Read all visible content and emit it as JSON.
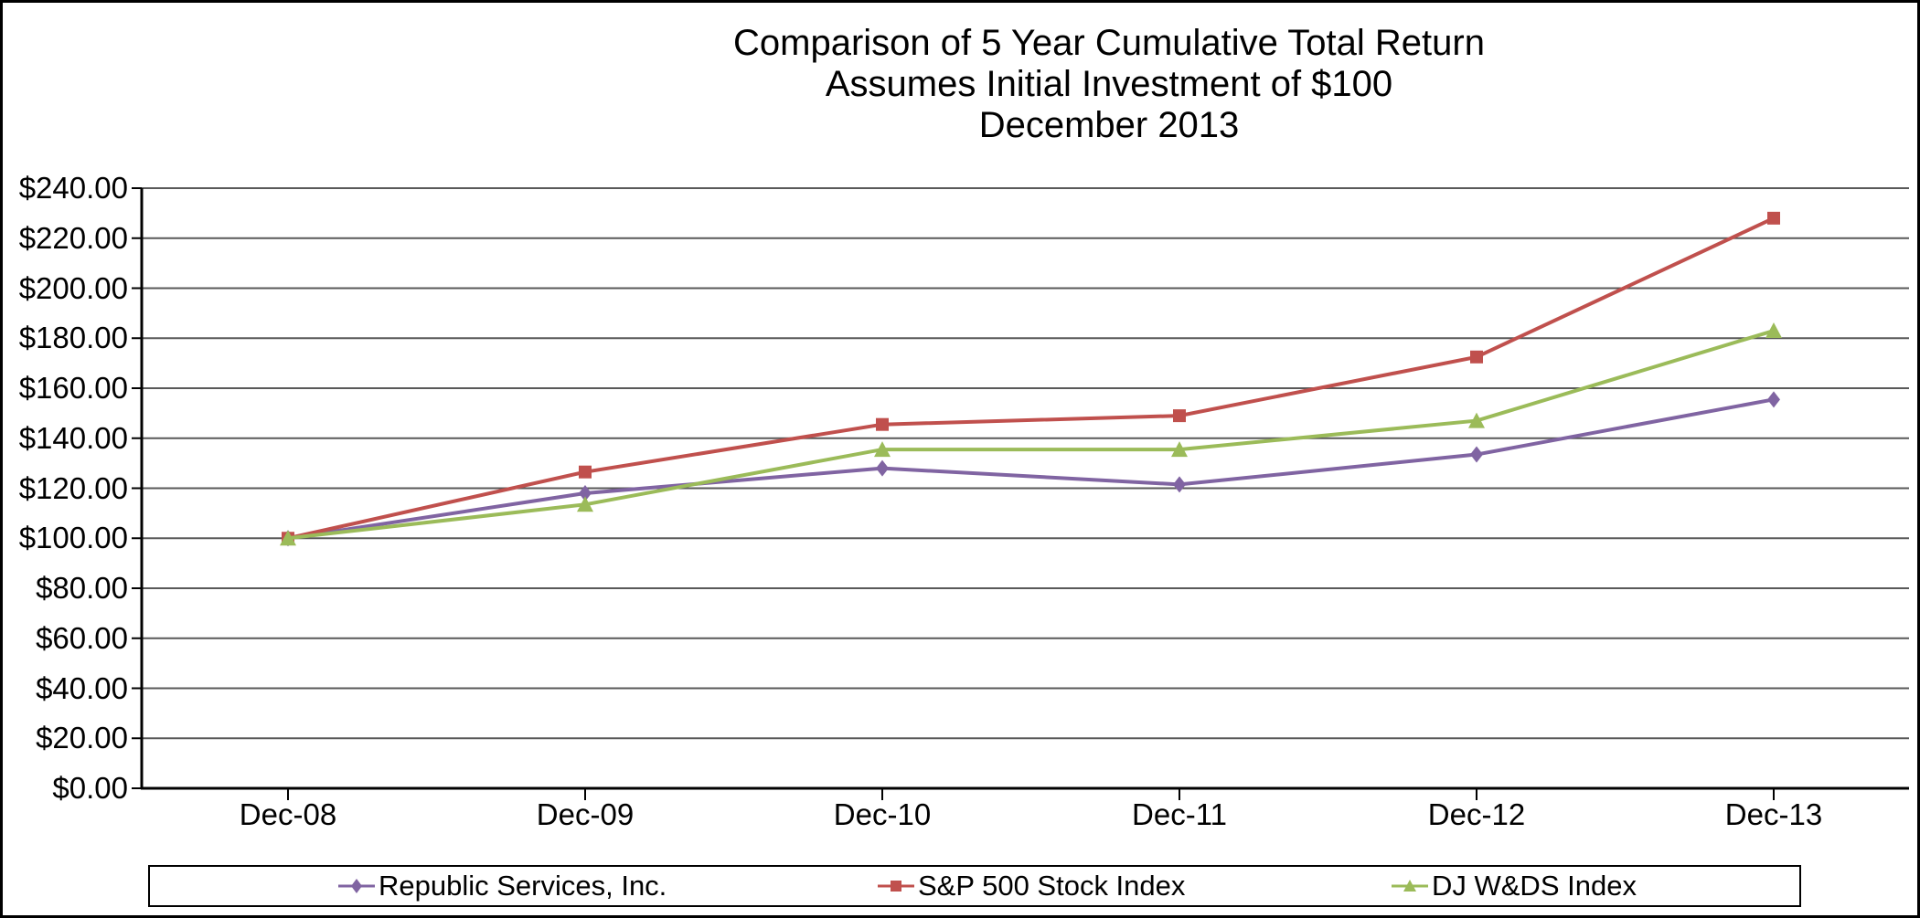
{
  "title": {
    "line1": "Comparison of 5 Year Cumulative Total Return",
    "line2": "Assumes Initial Investment of $100",
    "line3": "December 2013"
  },
  "chart_data": {
    "type": "line",
    "categories": [
      "Dec-08",
      "Dec-09",
      "Dec-10",
      "Dec-11",
      "Dec-12",
      "Dec-13"
    ],
    "series": [
      {
        "name": "Republic Services, Inc.",
        "marker": "diamond",
        "color": "#8064A2",
        "values": [
          100.0,
          118.0,
          128.0,
          121.5,
          133.5,
          155.5
        ]
      },
      {
        "name": "S&P 500 Stock Index",
        "marker": "square",
        "color": "#C0504D",
        "values": [
          100.0,
          126.5,
          145.5,
          149.0,
          172.5,
          228.0
        ]
      },
      {
        "name": "DJ W&DS Index",
        "marker": "triangle",
        "color": "#9BBB59",
        "values": [
          100.0,
          113.5,
          135.5,
          135.5,
          147.0,
          183.0
        ]
      }
    ],
    "ylim": [
      0,
      240
    ],
    "ytick_step": 20,
    "ytick_labels": [
      "$0.00",
      "$20.00",
      "$40.00",
      "$60.00",
      "$80.00",
      "$100.00",
      "$120.00",
      "$140.00",
      "$160.00",
      "$180.00",
      "$200.00",
      "$220.00",
      "$240.00"
    ],
    "xlabel": "",
    "ylabel": "",
    "grid": true,
    "legend_position": "bottom"
  },
  "colors": {
    "background": "#ffffff",
    "border": "#000000",
    "axis": "#000000",
    "gridline": "#595959",
    "text": "#000000"
  }
}
